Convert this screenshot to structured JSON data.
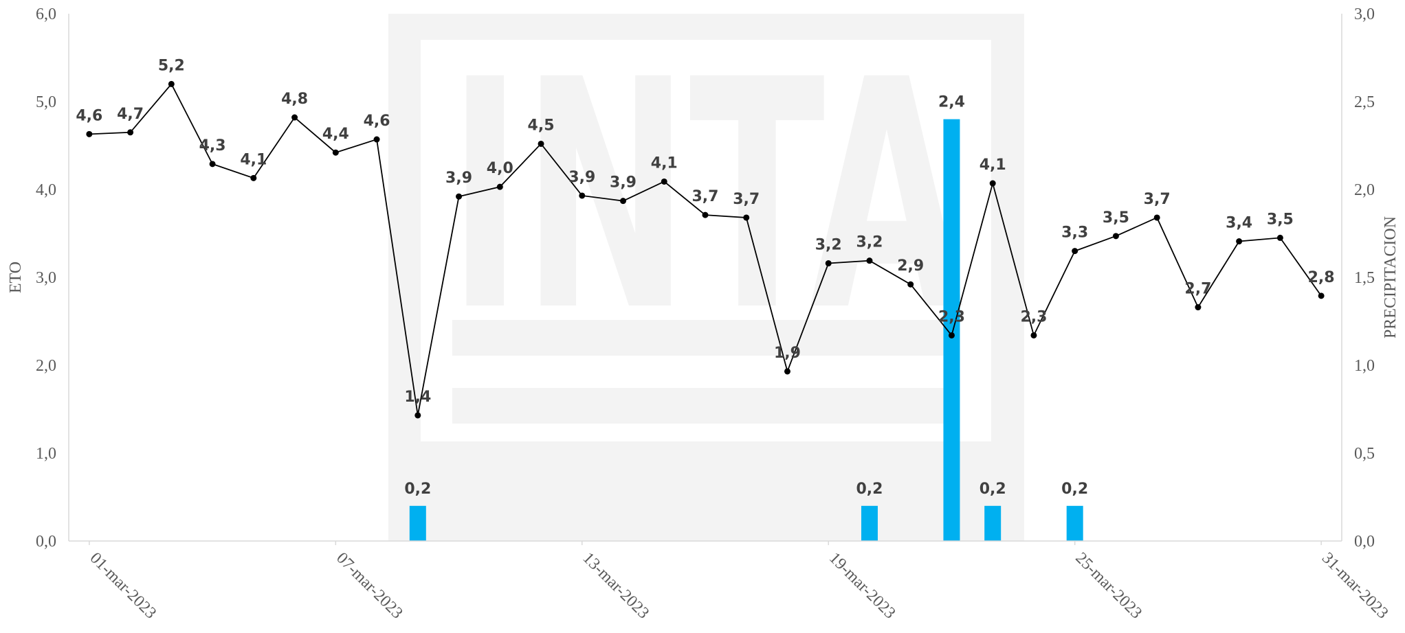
{
  "chart_data": {
    "type": "bar+line",
    "x": [
      "01-mar-2023",
      "02-mar-2023",
      "03-mar-2023",
      "04-mar-2023",
      "05-mar-2023",
      "06-mar-2023",
      "07-mar-2023",
      "08-mar-2023",
      "09-mar-2023",
      "10-mar-2023",
      "11-mar-2023",
      "12-mar-2023",
      "13-mar-2023",
      "14-mar-2023",
      "15-mar-2023",
      "16-mar-2023",
      "17-mar-2023",
      "18-mar-2023",
      "19-mar-2023",
      "20-mar-2023",
      "21-mar-2023",
      "22-mar-2023",
      "23-mar-2023",
      "24-mar-2023",
      "25-mar-2023",
      "26-mar-2023",
      "27-mar-2023",
      "28-mar-2023",
      "29-mar-2023",
      "30-mar-2023",
      "31-mar-2023"
    ],
    "x_tick_labels": [
      "01-mar-2023",
      "07-mar-2023",
      "13-mar-2023",
      "19-mar-2023",
      "25-mar-2023",
      "31-mar-2023"
    ],
    "ylabel_left": "ETO",
    "ylabel_right": "PRECIPITACION",
    "ylim_left": [
      0,
      6
    ],
    "ylim_right": [
      0,
      3
    ],
    "y_ticks_left": [
      "0,0",
      "1,0",
      "2,0",
      "3,0",
      "4,0",
      "5,0",
      "6,0"
    ],
    "y_ticks_right": [
      "0,0",
      "0,5",
      "1,0",
      "1,5",
      "2,0",
      "2,5",
      "3,0"
    ],
    "watermark": "INTA",
    "series": [
      {
        "type": "line",
        "axis": "left",
        "color": "#000000",
        "values": [
          4.63,
          4.65,
          5.2,
          4.29,
          4.13,
          4.82,
          4.42,
          4.57,
          1.43,
          3.92,
          4.03,
          4.52,
          3.93,
          3.87,
          4.09,
          3.71,
          3.68,
          1.93,
          3.16,
          3.19,
          2.92,
          2.34,
          4.07,
          2.34,
          3.3,
          3.47,
          3.68,
          2.66,
          3.41,
          3.45,
          2.79
        ],
        "labels": [
          "4,6",
          "4,7",
          "5,2",
          "4,3",
          "4,1",
          "4,8",
          "4,4",
          "4,6",
          "1,4",
          "3,9",
          "4,0",
          "4,5",
          "3,9",
          "3,9",
          "4,1",
          "3,7",
          "3,7",
          "1,9",
          "3,2",
          "3,2",
          "2,9",
          "2,3",
          "4,1",
          "2,3",
          "3,3",
          "3,5",
          "3,7",
          "2,7",
          "3,4",
          "3,5",
          "2,8"
        ]
      },
      {
        "type": "bar",
        "axis": "right",
        "color": "#00b0f0",
        "values": [
          0,
          0,
          0,
          0,
          0,
          0,
          0,
          0,
          0.2,
          0,
          0,
          0,
          0,
          0,
          0,
          0,
          0,
          0,
          0,
          0.2,
          0,
          2.4,
          0.2,
          0,
          0.2,
          0,
          0,
          0,
          0,
          0,
          0
        ],
        "labels": [
          "",
          "",
          "",
          "",
          "",
          "",
          "",
          "",
          "0,2",
          "",
          "",
          "",
          "",
          "",
          "",
          "",
          "",
          "",
          "",
          "0,2",
          "",
          "2,4",
          "0,2",
          "",
          "0,2",
          "",
          "",
          "",
          "",
          "",
          ""
        ]
      }
    ]
  }
}
